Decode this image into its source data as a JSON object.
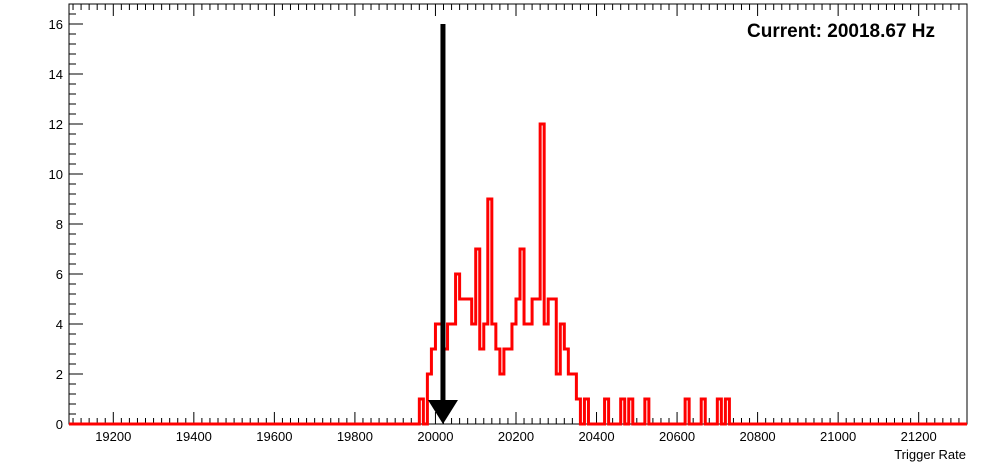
{
  "chart_data": {
    "type": "bar",
    "subtype": "step-histogram",
    "xlabel": "Trigger Rate",
    "ylabel": "",
    "xlim": [
      19090,
      21320
    ],
    "ylim": [
      0,
      16.8
    ],
    "x_ticks": [
      19200,
      19400,
      19600,
      19800,
      20000,
      20200,
      20400,
      20600,
      20800,
      21000,
      21200
    ],
    "y_ticks": [
      0,
      2,
      4,
      6,
      8,
      10,
      12,
      14,
      16
    ],
    "grid": false,
    "legend": "none",
    "annotation": "Current: 20018.67 Hz",
    "marker": {
      "x": 20018.67,
      "y_top": 16,
      "y_bottom": 0,
      "color": "#000000"
    },
    "bin_width": 10,
    "series": [
      {
        "color": "#ff0000",
        "bins": [
          [
            19960,
            1
          ],
          [
            19970,
            0
          ],
          [
            19980,
            2
          ],
          [
            19990,
            3
          ],
          [
            20000,
            4
          ],
          [
            20010,
            4
          ],
          [
            20020,
            3
          ],
          [
            20030,
            4
          ],
          [
            20040,
            4
          ],
          [
            20050,
            6
          ],
          [
            20060,
            5
          ],
          [
            20070,
            5
          ],
          [
            20080,
            5
          ],
          [
            20090,
            4
          ],
          [
            20100,
            7
          ],
          [
            20110,
            3
          ],
          [
            20120,
            4
          ],
          [
            20130,
            9
          ],
          [
            20140,
            4
          ],
          [
            20150,
            3
          ],
          [
            20160,
            2
          ],
          [
            20170,
            3
          ],
          [
            20180,
            3
          ],
          [
            20190,
            4
          ],
          [
            20200,
            5
          ],
          [
            20210,
            7
          ],
          [
            20220,
            4
          ],
          [
            20230,
            4
          ],
          [
            20240,
            5
          ],
          [
            20250,
            5
          ],
          [
            20260,
            12
          ],
          [
            20270,
            4
          ],
          [
            20280,
            5
          ],
          [
            20290,
            5
          ],
          [
            20300,
            2
          ],
          [
            20310,
            4
          ],
          [
            20320,
            3
          ],
          [
            20330,
            2
          ],
          [
            20340,
            2
          ],
          [
            20350,
            1
          ],
          [
            20360,
            0
          ],
          [
            20370,
            1
          ],
          [
            20420,
            1
          ],
          [
            20460,
            1
          ],
          [
            20480,
            1
          ],
          [
            20520,
            1
          ],
          [
            20620,
            1
          ],
          [
            20660,
            1
          ],
          [
            20700,
            1
          ],
          [
            20720,
            1
          ]
        ]
      }
    ]
  }
}
